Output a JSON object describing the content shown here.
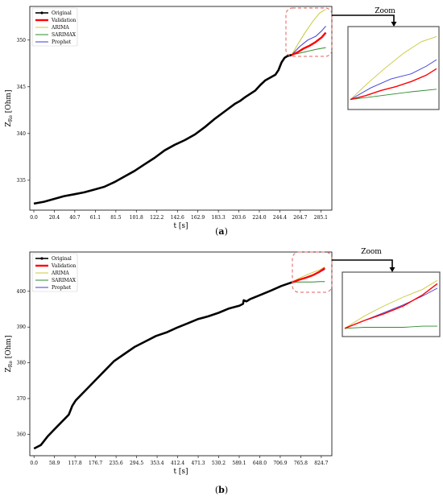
{
  "colors": {
    "original": "#000000",
    "validation": "#ff0000",
    "arima": "#c8c83c",
    "sarimax": "#2e8b2e",
    "prophet": "#3b3bdc",
    "zoom_box": "#e06060"
  },
  "chart_data": [
    {
      "type": "line",
      "panel_label": "a",
      "xlabel": "t [s]",
      "ylabel": "Z_Re [Ohm]",
      "ylabel_main": "Z",
      "ylabel_sub": "Re",
      "ylabel_unit": " [Ohm]",
      "xticks": [
        "0.0",
        "20.4",
        "40.7",
        "61.1",
        "81.5",
        "101.8",
        "122.2",
        "142.6",
        "162.9",
        "183.3",
        "203.6",
        "224.0",
        "244.4",
        "264.7",
        "285.1"
      ],
      "yticks": [
        335,
        340,
        345,
        350
      ],
      "xlim": [
        -4,
        296
      ],
      "ylim": [
        331.8,
        353.6
      ],
      "zoom_label": "Zoom",
      "legend": [
        "Original",
        "Validation",
        "ARIMA",
        "SARIMAX",
        "Prophet"
      ],
      "series": [
        {
          "name": "Original",
          "x": [
            0,
            10,
            20,
            30,
            40,
            50,
            60,
            70,
            80,
            90,
            100,
            110,
            120,
            130,
            140,
            150,
            160,
            170,
            180,
            190,
            200,
            205,
            210,
            220,
            225,
            230,
            240,
            243,
            246,
            249,
            252,
            256
          ],
          "y": [
            332.5,
            332.7,
            333.0,
            333.3,
            333.5,
            333.7,
            334.0,
            334.3,
            334.8,
            335.4,
            336.0,
            336.7,
            337.4,
            338.2,
            338.8,
            339.3,
            339.9,
            340.7,
            341.6,
            342.4,
            343.2,
            343.5,
            343.9,
            344.6,
            345.2,
            345.7,
            346.3,
            346.8,
            347.6,
            348.1,
            348.3,
            348.4
          ]
        },
        {
          "name": "Validation",
          "x": [
            256,
            262,
            268,
            274,
            280,
            286,
            290
          ],
          "y": [
            348.4,
            348.7,
            349.1,
            349.4,
            349.8,
            350.3,
            350.8
          ]
        },
        {
          "name": "ARIMA",
          "x": [
            256,
            263,
            270,
            277,
            284,
            290
          ],
          "y": [
            348.4,
            349.7,
            350.9,
            352.0,
            352.9,
            353.3
          ]
        },
        {
          "name": "SARIMAX",
          "x": [
            256,
            264,
            272,
            280,
            290
          ],
          "y": [
            348.4,
            348.6,
            348.8,
            349.0,
            349.2
          ]
        },
        {
          "name": "Prophet",
          "x": [
            256,
            264,
            272,
            280,
            286,
            290
          ],
          "y": [
            348.4,
            349.3,
            350.0,
            350.4,
            351.0,
            351.5
          ]
        }
      ]
    },
    {
      "type": "line",
      "panel_label": "b",
      "xlabel": "t [s]",
      "ylabel": "Z_Re [Ohm]",
      "ylabel_main": "Z",
      "ylabel_sub": "Re",
      "ylabel_unit": " [Ohm]",
      "xticks": [
        "0.0",
        "58.9",
        "117.8",
        "176.7",
        "235.6",
        "294.5",
        "353.4",
        "412.4",
        "471.3",
        "530.2",
        "589.1",
        "648.0",
        "706.9",
        "765.8",
        "824.7"
      ],
      "yticks": [
        360,
        370,
        380,
        390,
        400
      ],
      "xlim": [
        -12,
        855
      ],
      "ylim": [
        354.0,
        411.0
      ],
      "zoom_label": "Zoom",
      "legend": [
        "Original",
        "Validation",
        "ARIMA",
        "SARIMAX",
        "Prophet"
      ],
      "series": [
        {
          "name": "Original",
          "x": [
            0,
            20,
            40,
            60,
            80,
            100,
            110,
            120,
            150,
            180,
            200,
            230,
            260,
            290,
            320,
            350,
            380,
            410,
            440,
            470,
            500,
            530,
            560,
            590,
            600,
            602,
            610,
            620,
            650,
            680,
            710,
            740
          ],
          "y": [
            356.0,
            357.0,
            359.5,
            361.5,
            363.5,
            365.5,
            368.0,
            369.5,
            372.5,
            375.5,
            377.5,
            380.5,
            382.5,
            384.5,
            386.0,
            387.5,
            388.5,
            389.8,
            391.0,
            392.2,
            393.0,
            394.0,
            395.2,
            396.0,
            396.5,
            397.5,
            397.2,
            397.8,
            399.0,
            400.2,
            401.5,
            402.5
          ]
        },
        {
          "name": "Validation",
          "x": [
            740,
            760,
            780,
            800,
            820,
            835
          ],
          "y": [
            402.5,
            403.2,
            403.8,
            404.5,
            405.5,
            406.5
          ]
        },
        {
          "name": "ARIMA",
          "x": [
            740,
            760,
            780,
            800,
            820,
            835
          ],
          "y": [
            402.5,
            403.6,
            404.5,
            405.3,
            406.0,
            406.8
          ]
        },
        {
          "name": "SARIMAX",
          "x": [
            740,
            760,
            780,
            800,
            820,
            835
          ],
          "y": [
            402.5,
            402.6,
            402.6,
            402.6,
            402.7,
            402.7
          ]
        },
        {
          "name": "Prophet",
          "x": [
            740,
            760,
            780,
            800,
            820,
            835
          ],
          "y": [
            402.5,
            403.2,
            403.9,
            404.6,
            405.4,
            406.1
          ]
        }
      ]
    }
  ]
}
